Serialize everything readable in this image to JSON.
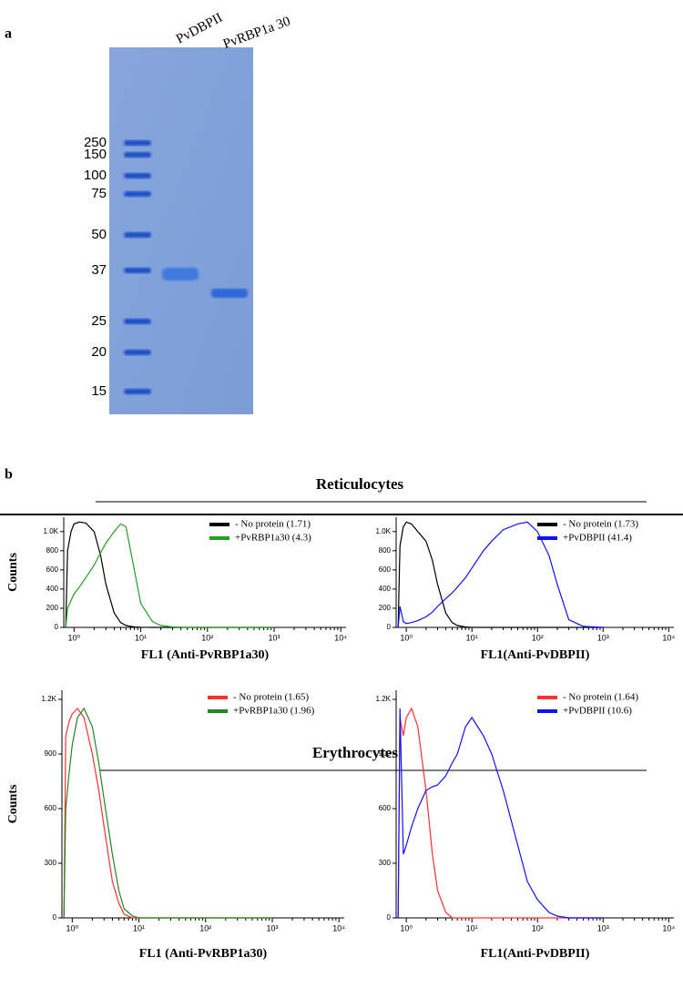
{
  "panel_a": {
    "label": "a",
    "lanes": [
      "PvDBPII",
      "PvRBP1a 30"
    ],
    "markers": [
      250,
      150,
      100,
      75,
      50,
      37,
      25,
      20,
      15
    ]
  },
  "panel_b": {
    "label": "b",
    "groups": [
      "Reticulocytes",
      "Erythrocytes"
    ]
  },
  "chart_data": [
    {
      "type": "line",
      "xlabel": "FL1 (Anti-PvRBP1a30)",
      "ylabel": "Counts",
      "xlog": true,
      "x": [
        0.75,
        0.8,
        0.9,
        1,
        1.2,
        1.5,
        2,
        2.5,
        3,
        4,
        5,
        6,
        8,
        10,
        15,
        20,
        30,
        50,
        70,
        100,
        150,
        200,
        300,
        500,
        1000
      ],
      "xlim": [
        0.7,
        12000
      ],
      "ylim": [
        0,
        1150
      ],
      "xticks": [
        {
          "value": 1,
          "label": "10⁰"
        },
        {
          "value": 10,
          "label": "10¹"
        },
        {
          "value": 100,
          "label": "10²"
        },
        {
          "value": 1000,
          "label": "10³"
        },
        {
          "value": 10000,
          "label": "10⁴"
        }
      ],
      "yticks": [
        0,
        200,
        400,
        600,
        800,
        {
          "value": 1000,
          "label": "1.0K"
        }
      ],
      "series": [
        {
          "name": "-  No protein (1.71)",
          "color": "#000000",
          "values": [
            0,
            800,
            1000,
            1080,
            1100,
            1090,
            1000,
            750,
            450,
            150,
            50,
            20,
            5,
            2,
            0,
            0,
            0,
            0,
            0,
            0,
            0,
            0,
            0,
            0,
            0
          ]
        },
        {
          "name": "+PvRBP1a30 (4.3)",
          "color": "#22a022",
          "values": [
            0,
            200,
            280,
            350,
            420,
            520,
            650,
            780,
            880,
            1000,
            1080,
            1050,
            600,
            250,
            60,
            20,
            5,
            0,
            0,
            0,
            0,
            0,
            0,
            0,
            0
          ]
        }
      ]
    },
    {
      "type": "line",
      "xlabel": "FL1(Anti-PvDBPII)",
      "xlog": true,
      "x": [
        0.75,
        0.8,
        0.9,
        1,
        1.2,
        1.5,
        2,
        2.5,
        3,
        4,
        5,
        6,
        8,
        10,
        15,
        20,
        30,
        50,
        70,
        100,
        150,
        200,
        300,
        500,
        1000
      ],
      "xlim": [
        0.7,
        12000
      ],
      "ylim": [
        0,
        1150
      ],
      "xticks": [
        {
          "value": 1,
          "label": "10⁰"
        },
        {
          "value": 10,
          "label": "10¹"
        },
        {
          "value": 100,
          "label": "10²"
        },
        {
          "value": 1000,
          "label": "10³"
        },
        {
          "value": 10000,
          "label": "10⁴"
        }
      ],
      "yticks": [
        0,
        200,
        400,
        600,
        800,
        {
          "value": 1000,
          "label": "1.0K"
        }
      ],
      "series": [
        {
          "name": "- No protein (1.73)",
          "color": "#000000",
          "values": [
            0,
            850,
            1050,
            1100,
            1080,
            1000,
            900,
            700,
            450,
            150,
            50,
            20,
            5,
            0,
            0,
            0,
            0,
            0,
            0,
            0,
            0,
            0,
            0,
            0,
            0
          ]
        },
        {
          "name": "+PvDBPII (41.4)",
          "color": "#1010ff",
          "values": [
            0,
            220,
            60,
            40,
            50,
            70,
            110,
            160,
            220,
            300,
            360,
            420,
            520,
            620,
            800,
            900,
            1020,
            1080,
            1100,
            1000,
            750,
            450,
            80,
            10,
            0
          ]
        }
      ]
    },
    {
      "type": "line",
      "xlabel": "FL1 (Anti-PvRBP1a30)",
      "ylabel": "Counts",
      "xlog": true,
      "x": [
        0.75,
        0.8,
        0.9,
        1,
        1.2,
        1.5,
        2,
        2.5,
        3,
        4,
        5,
        6,
        8,
        10,
        15,
        20,
        30,
        50,
        70,
        100,
        150,
        200,
        300,
        500,
        1000
      ],
      "xlim": [
        0.7,
        12000
      ],
      "ylim": [
        0,
        1250
      ],
      "xticks": [
        {
          "value": 1,
          "label": "10⁰"
        },
        {
          "value": 10,
          "label": "10¹"
        },
        {
          "value": 100,
          "label": "10²"
        },
        {
          "value": 1000,
          "label": "10³"
        },
        {
          "value": 10000,
          "label": "10⁴"
        }
      ],
      "yticks": [
        0,
        300,
        600,
        900,
        {
          "value": 1200,
          "label": "1.2K"
        }
      ],
      "series": [
        {
          "name": "- No protein (1.65)",
          "color": "#ff3030",
          "values": [
            0,
            1000,
            1080,
            1120,
            1150,
            1100,
            900,
            700,
            500,
            200,
            80,
            20,
            0,
            0,
            0,
            0,
            0,
            0,
            0,
            0,
            0,
            0,
            0,
            0,
            0
          ]
        },
        {
          "name": "+PvRBP1a30 (1.96)",
          "color": "#228822",
          "values": [
            0,
            600,
            800,
            950,
            1100,
            1150,
            1050,
            850,
            650,
            350,
            150,
            50,
            10,
            0,
            0,
            0,
            0,
            0,
            0,
            0,
            0,
            0,
            0,
            0,
            0
          ]
        }
      ]
    },
    {
      "type": "line",
      "xlabel": "FL1(Anti-PvDBPII)",
      "xlog": true,
      "x": [
        0.75,
        0.8,
        0.9,
        1,
        1.2,
        1.5,
        2,
        2.5,
        3,
        4,
        5,
        6,
        8,
        10,
        15,
        20,
        30,
        50,
        70,
        100,
        150,
        200,
        300,
        500,
        1000
      ],
      "xlim": [
        0.7,
        12000
      ],
      "ylim": [
        0,
        1250
      ],
      "xticks": [
        {
          "value": 1,
          "label": "10⁰"
        },
        {
          "value": 10,
          "label": "10¹"
        },
        {
          "value": 100,
          "label": "10²"
        },
        {
          "value": 1000,
          "label": "10³"
        },
        {
          "value": 10000,
          "label": "10⁴"
        }
      ],
      "yticks": [
        0,
        300,
        600,
        900,
        {
          "value": 1200,
          "label": "1.2K"
        }
      ],
      "series": [
        {
          "name": "- No protein (1.64)",
          "color": "#ff3030",
          "values": [
            0,
            1100,
            1000,
            1100,
            1150,
            1050,
            700,
            350,
            150,
            30,
            0,
            0,
            0,
            0,
            0,
            0,
            0,
            0,
            0,
            0,
            0,
            0,
            0,
            0,
            0
          ]
        },
        {
          "name": "+PvDBPII (10.6)",
          "color": "#1010ff",
          "values": [
            0,
            1150,
            350,
            400,
            500,
            600,
            700,
            720,
            730,
            780,
            850,
            900,
            1050,
            1100,
            1000,
            900,
            700,
            400,
            200,
            100,
            30,
            10,
            0,
            0,
            0
          ]
        }
      ]
    }
  ]
}
